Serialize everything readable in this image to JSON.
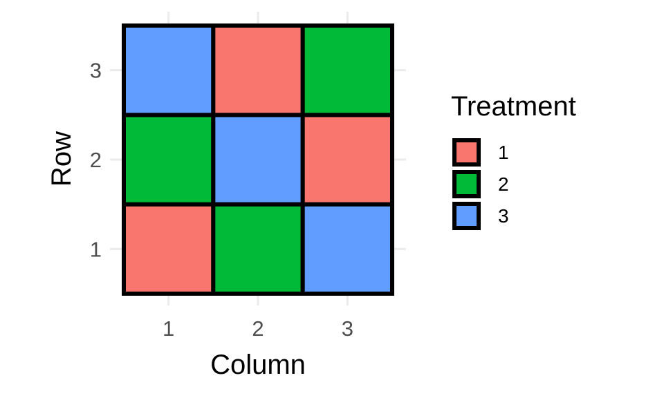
{
  "chart_data": {
    "type": "heatmap",
    "title": "",
    "xlabel": "Column",
    "ylabel": "Row",
    "x_categories": [
      "1",
      "2",
      "3"
    ],
    "y_categories": [
      "1",
      "2",
      "3"
    ],
    "grid": true,
    "legend": {
      "title": "Treatment",
      "placement": "right",
      "entries": [
        {
          "label": "1",
          "color": "#F8766D"
        },
        {
          "label": "2",
          "color": "#00BA38"
        },
        {
          "label": "3",
          "color": "#619CFF"
        }
      ]
    },
    "cells": [
      {
        "column": 1,
        "row": 1,
        "treatment": "1"
      },
      {
        "column": 2,
        "row": 1,
        "treatment": "2"
      },
      {
        "column": 3,
        "row": 1,
        "treatment": "3"
      },
      {
        "column": 1,
        "row": 2,
        "treatment": "2"
      },
      {
        "column": 2,
        "row": 2,
        "treatment": "3"
      },
      {
        "column": 3,
        "row": 2,
        "treatment": "1"
      },
      {
        "column": 1,
        "row": 3,
        "treatment": "3"
      },
      {
        "column": 2,
        "row": 3,
        "treatment": "1"
      },
      {
        "column": 3,
        "row": 3,
        "treatment": "2"
      }
    ]
  }
}
